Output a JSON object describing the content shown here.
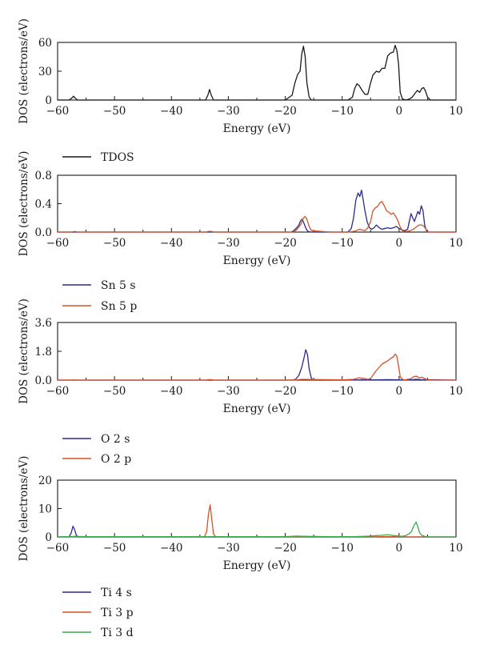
{
  "chart_data": [
    {
      "type": "line",
      "ylabel": "DOS (electrons/eV)",
      "xlabel": "Energy (eV)",
      "xlim": [
        -60,
        10
      ],
      "ylim": [
        0,
        60
      ],
      "xticks": [
        "−60",
        "−50",
        "−40",
        "−30",
        "−20",
        "−10",
        "0",
        "10"
      ],
      "yticks": [
        "0",
        "30",
        "60"
      ],
      "legend_placement": "below",
      "series": [
        {
          "name": "TDOS",
          "color": "#1a1a1a",
          "x": [
            -60,
            -58,
            -57.5,
            -57.2,
            -56.9,
            -56.5,
            -55,
            -40,
            -34,
            -33.6,
            -33.3,
            -33.0,
            -32.6,
            -31,
            -20,
            -18.8,
            -18.3,
            -17.8,
            -17.4,
            -17.1,
            -16.8,
            -16.5,
            -16.2,
            -15.8,
            -15.4,
            -12,
            -9,
            -8.2,
            -7.8,
            -7.4,
            -7.0,
            -6.5,
            -6.0,
            -5.5,
            -5.0,
            -4.6,
            -4.0,
            -3.5,
            -3.0,
            -2.5,
            -2.0,
            -1.5,
            -1.0,
            -0.7,
            -0.4,
            -0.1,
            0.2,
            0.6,
            1.2,
            1.8,
            2.3,
            2.8,
            3.2,
            3.6,
            4.0,
            4.3,
            4.6,
            5.0,
            5.5,
            7,
            10
          ],
          "y": [
            0,
            0,
            2,
            4,
            2,
            0,
            0,
            0,
            0,
            5,
            11,
            5,
            0,
            0,
            0,
            5,
            18,
            27,
            30,
            48,
            56,
            45,
            18,
            3,
            0,
            0,
            0,
            3,
            12,
            17,
            15,
            10,
            6,
            6,
            18,
            26,
            30,
            29,
            33,
            33,
            46,
            49,
            50,
            57,
            52,
            38,
            8,
            1,
            0,
            1,
            3,
            7,
            10,
            8,
            12,
            13,
            10,
            3,
            0,
            0,
            0
          ]
        }
      ]
    },
    {
      "type": "line",
      "ylabel": "DOS (electrons/eV)",
      "xlabel": "Energy (eV)",
      "xlim": [
        -60,
        10
      ],
      "ylim": [
        0,
        0.8
      ],
      "xticks": [
        "−60",
        "−50",
        "−40",
        "−30",
        "−20",
        "−10",
        "0",
        "10"
      ],
      "yticks": [
        "0.0",
        "0.4",
        "0.8"
      ],
      "legend_placement": "below",
      "series": [
        {
          "name": "Sn 5 s",
          "color": "#2b2b8c",
          "x": [
            -60,
            -19,
            -18.5,
            -18.0,
            -17.6,
            -17.3,
            -17.0,
            -16.7,
            -16.3,
            -16.0,
            -15.6,
            -12,
            -9,
            -8.4,
            -8.0,
            -7.6,
            -7.2,
            -6.9,
            -6.6,
            -6.3,
            -6.0,
            -5.6,
            -5.2,
            -4.8,
            -4.4,
            -4.0,
            -3.5,
            -3.0,
            -2.5,
            -2.0,
            -1.5,
            -1.0,
            -0.5,
            0,
            0.5,
            1.0,
            1.5,
            1.8,
            2.1,
            2.4,
            2.7,
            3.0,
            3.3,
            3.6,
            3.9,
            4.2,
            4.5,
            4.8,
            5.2,
            10
          ],
          "y": [
            0,
            0,
            0.02,
            0.06,
            0.1,
            0.16,
            0.18,
            0.12,
            0.04,
            0.01,
            0,
            0,
            0,
            0.05,
            0.2,
            0.45,
            0.55,
            0.5,
            0.59,
            0.45,
            0.3,
            0.14,
            0.06,
            0.04,
            0.06,
            0.1,
            0.06,
            0.04,
            0.05,
            0.06,
            0.05,
            0.06,
            0.08,
            0.05,
            0.03,
            0.02,
            0.04,
            0.15,
            0.26,
            0.2,
            0.15,
            0.22,
            0.29,
            0.25,
            0.37,
            0.3,
            0.1,
            0.02,
            0,
            0
          ]
        },
        {
          "name": "Sn 5 p",
          "color": "#d4522a",
          "x": [
            -60,
            -57.5,
            -57.0,
            -56.5,
            -55,
            -34,
            -33.5,
            -33.0,
            -32.5,
            -19,
            -18.2,
            -17.7,
            -17.2,
            -16.8,
            -16.5,
            -16.2,
            -15.8,
            -15.4,
            -12,
            -9,
            -8.0,
            -7.5,
            -7.0,
            -6.5,
            -6.0,
            -5.5,
            -5.0,
            -4.6,
            -4.2,
            -3.8,
            -3.4,
            -3.0,
            -2.6,
            -2.2,
            -1.8,
            -1.4,
            -1.0,
            -0.6,
            -0.2,
            0.2,
            0.6,
            1.0,
            1.5,
            2.0,
            2.5,
            3.0,
            3.5,
            4.0,
            4.4,
            4.8,
            5.2,
            10
          ],
          "y": [
            0,
            0,
            0.01,
            0,
            0,
            0,
            0.01,
            0.01,
            0,
            0,
            0.02,
            0.06,
            0.12,
            0.2,
            0.22,
            0.18,
            0.08,
            0.02,
            0,
            0,
            0.01,
            0.02,
            0.04,
            0.03,
            0.02,
            0.06,
            0.15,
            0.3,
            0.34,
            0.36,
            0.41,
            0.43,
            0.37,
            0.3,
            0.28,
            0.25,
            0.27,
            0.22,
            0.16,
            0.07,
            0.02,
            0.01,
            0.01,
            0.02,
            0.04,
            0.07,
            0.1,
            0.1,
            0.08,
            0.03,
            0,
            0
          ]
        }
      ]
    },
    {
      "type": "line",
      "ylabel": "DOS (electrons/eV)",
      "xlabel": "Energy (eV)",
      "xlim": [
        -60,
        10
      ],
      "ylim": [
        0,
        3.6
      ],
      "xticks": [
        "−60",
        "−50",
        "−40",
        "−30",
        "−20",
        "−10",
        "0",
        "10"
      ],
      "yticks": [
        "0.0",
        "1.8",
        "3.6"
      ],
      "legend_placement": "below",
      "series": [
        {
          "name": "O 2 s",
          "color": "#2b2b8c",
          "x": [
            -60,
            -18.8,
            -18.2,
            -17.6,
            -17.1,
            -16.7,
            -16.4,
            -16.1,
            -15.8,
            -15.4,
            -15,
            -10,
            -7,
            -6.5,
            -6,
            -4,
            -2,
            0,
            2,
            3,
            4,
            10
          ],
          "y": [
            0,
            0,
            0.05,
            0.3,
            0.8,
            1.4,
            1.9,
            1.6,
            0.7,
            0.1,
            0,
            0,
            0.02,
            0.03,
            0.02,
            0.02,
            0.03,
            0.02,
            0.02,
            0.05,
            0.03,
            0
          ]
        },
        {
          "name": "O 2 p",
          "color": "#d4522a",
          "x": [
            -60,
            -57.5,
            -57,
            -56.5,
            -34,
            -33.5,
            -33,
            -32.5,
            -20,
            -18,
            -17,
            -16,
            -10,
            -8,
            -7.5,
            -7,
            -6.5,
            -6,
            -5.5,
            -5,
            -4.5,
            -4,
            -3.5,
            -3,
            -2.5,
            -2,
            -1.5,
            -1.0,
            -0.7,
            -0.4,
            -0.1,
            0.2,
            0.6,
            1.0,
            1.5,
            2.0,
            2.5,
            3.0,
            3.5,
            4.0,
            4.5,
            5,
            10
          ],
          "y": [
            0,
            0,
            0.02,
            0,
            0,
            0.03,
            0.03,
            0,
            0,
            0.02,
            0.05,
            0.04,
            0.02,
            0.05,
            0.1,
            0.15,
            0.12,
            0.1,
            0.05,
            0.1,
            0.35,
            0.6,
            0.8,
            1.0,
            1.1,
            1.2,
            1.35,
            1.45,
            1.62,
            1.5,
            0.9,
            0.2,
            0.05,
            0.02,
            0.05,
            0.08,
            0.2,
            0.25,
            0.15,
            0.18,
            0.1,
            0,
            0
          ]
        }
      ]
    },
    {
      "type": "line",
      "ylabel": "DOS (electrons/eV)",
      "xlabel": "Energy (eV)",
      "xlim": [
        -60,
        10
      ],
      "ylim": [
        0,
        20
      ],
      "xticks": [
        "−60",
        "−50",
        "−40",
        "−30",
        "−20",
        "−10",
        "0",
        "10"
      ],
      "yticks": [
        "0",
        "10",
        "20"
      ],
      "legend_placement": "below",
      "series": [
        {
          "name": "Ti 4 s",
          "color": "#2b2b8c",
          "x": [
            -60,
            -58.0,
            -57.6,
            -57.3,
            -57.0,
            -56.7,
            -56.3,
            -55,
            10
          ],
          "y": [
            0,
            0,
            1.5,
            3.8,
            2.5,
            0.5,
            0,
            0,
            0
          ]
        },
        {
          "name": "Ti 3 p",
          "color": "#d4522a",
          "x": [
            -60,
            -34.2,
            -33.8,
            -33.5,
            -33.2,
            -32.9,
            -32.6,
            -32.2,
            -20,
            -5,
            -3,
            -1,
            0,
            10
          ],
          "y": [
            0,
            0,
            2,
            8,
            11.3,
            6,
            1,
            0,
            0,
            0,
            0.1,
            0.1,
            0,
            0
          ]
        },
        {
          "name": "Ti 3 d",
          "color": "#3aa84a",
          "x": [
            -60,
            -58,
            -57,
            -55,
            -40,
            -30,
            -20,
            -18,
            -16,
            -12,
            -8,
            -5,
            -4,
            -3,
            -2,
            -1,
            0,
            0.5,
            1.2,
            1.8,
            2.2,
            2.6,
            3.0,
            3.3,
            3.6,
            4.0,
            4.5,
            5,
            10
          ],
          "y": [
            0,
            0.1,
            0.2,
            0.1,
            0.1,
            0.1,
            0.1,
            0.3,
            0.2,
            0.1,
            0.1,
            0.3,
            0.5,
            0.6,
            0.8,
            0.5,
            0.3,
            0.2,
            0.5,
            1.2,
            2.0,
            4.0,
            5.2,
            3.5,
            1.5,
            0.6,
            0.2,
            0,
            0
          ]
        }
      ]
    }
  ]
}
